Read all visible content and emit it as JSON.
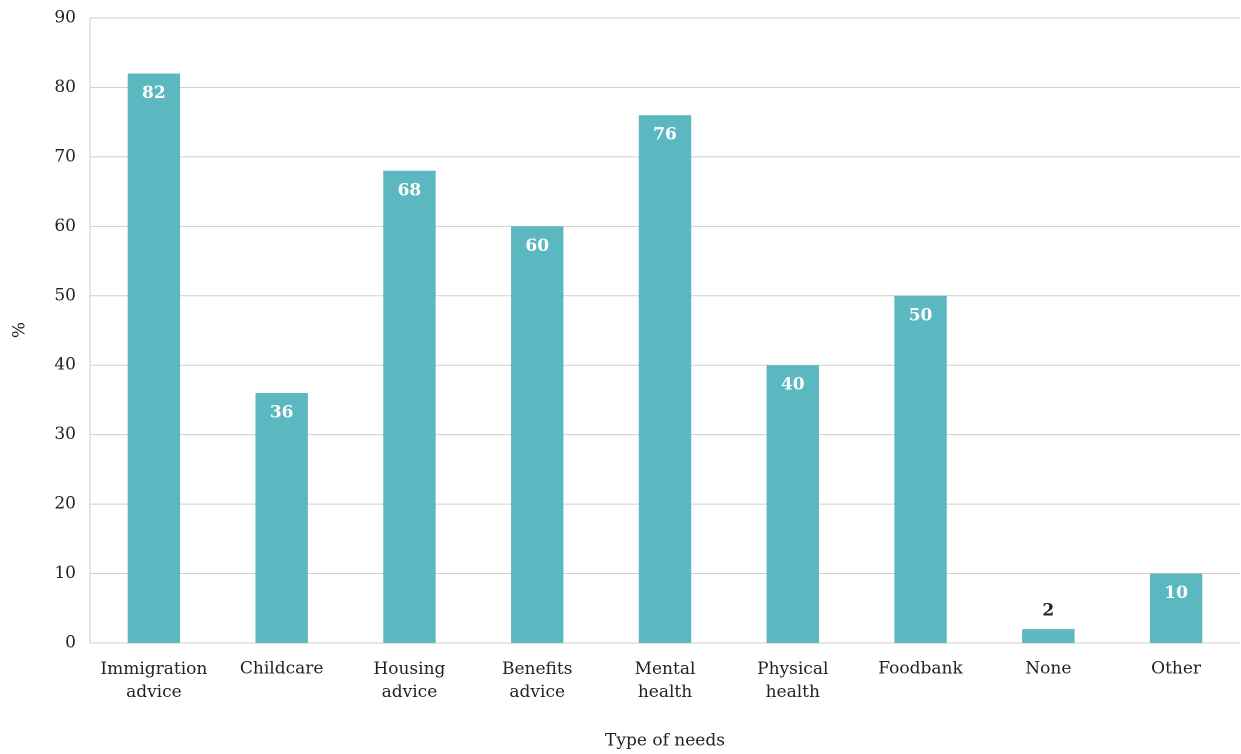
{
  "chart_data": {
    "type": "bar",
    "x_label": "Type of needs",
    "y_label": "%",
    "categories": [
      "Immigration advice",
      "Childcare",
      "Housing advice",
      "Benefits advice",
      "Mental health",
      "Physical health",
      "Foodbank",
      "None",
      "Other"
    ],
    "values": [
      82,
      36,
      68,
      60,
      76,
      40,
      50,
      2,
      10
    ],
    "color": "#5bb8c0",
    "ylim": [
      0,
      90
    ],
    "yticks": [
      0,
      10,
      20,
      30,
      40,
      50,
      60,
      70,
      80,
      90
    ],
    "grid": true
  }
}
